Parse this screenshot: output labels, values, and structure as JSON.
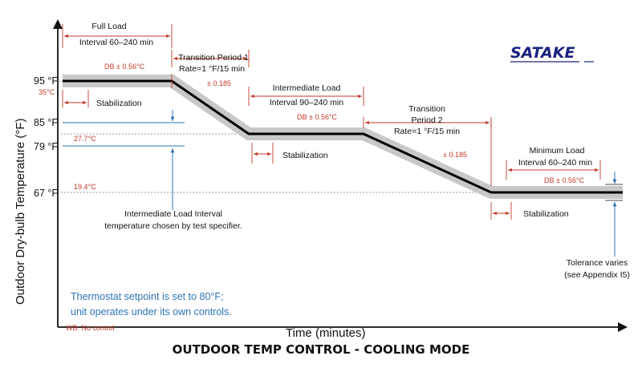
{
  "brand": {
    "logo_text": "SATAKE"
  },
  "axes": {
    "y_label": "Outdoor Dry-bulb Temperature (°F)",
    "x_label": "Time (minutes)",
    "y_ticks": [
      "95 °F",
      "85 °F",
      "79 °F",
      "67 °F"
    ]
  },
  "periods": {
    "full_load": [
      "Full Load",
      "Interval 60–240 min"
    ],
    "transition_1": [
      "Transition Period 1",
      "Rate=1 °F/15 min"
    ],
    "intermediate": [
      "Intermediate Load",
      "Interval 90–240 min"
    ],
    "transition_2": [
      "Transition",
      "Period 2",
      "Rate=1 °F/15 min"
    ],
    "minimum": [
      "Minimum Load",
      "Interval 60–240 min"
    ]
  },
  "tolerances": {
    "db_full": "DB ± 0.56°C",
    "db_intermediate": "DB ± 0.56°C",
    "db_minimum": "DB ± 0.56°C",
    "rate_1": "± 0.185",
    "rate_2": "± 0.185"
  },
  "celsius": {
    "c35": "35°C",
    "c27": "27.7°C",
    "c19": "19.4°C"
  },
  "stabilization": "Stabilization",
  "annotations": {
    "intermediate_interval": [
      "Intermediate Load Interval",
      "temperature chosen by test specifier."
    ],
    "tolerance_varies": [
      "Tolerance varies",
      "(see Appendix I5)"
    ],
    "thermostat": [
      "Thermostat setpoint is set to 80°F;",
      "unit operates under its own controls."
    ],
    "wb": "WB:  No control"
  },
  "footer_title": "OUTDOOR TEMP CONTROL -  COOLING MODE",
  "colors": {
    "accent_red": "#c0392b",
    "note_blue": "#2e74b5",
    "band_gray": "#c8c8c8",
    "brand_navy": "#1a237e"
  }
}
